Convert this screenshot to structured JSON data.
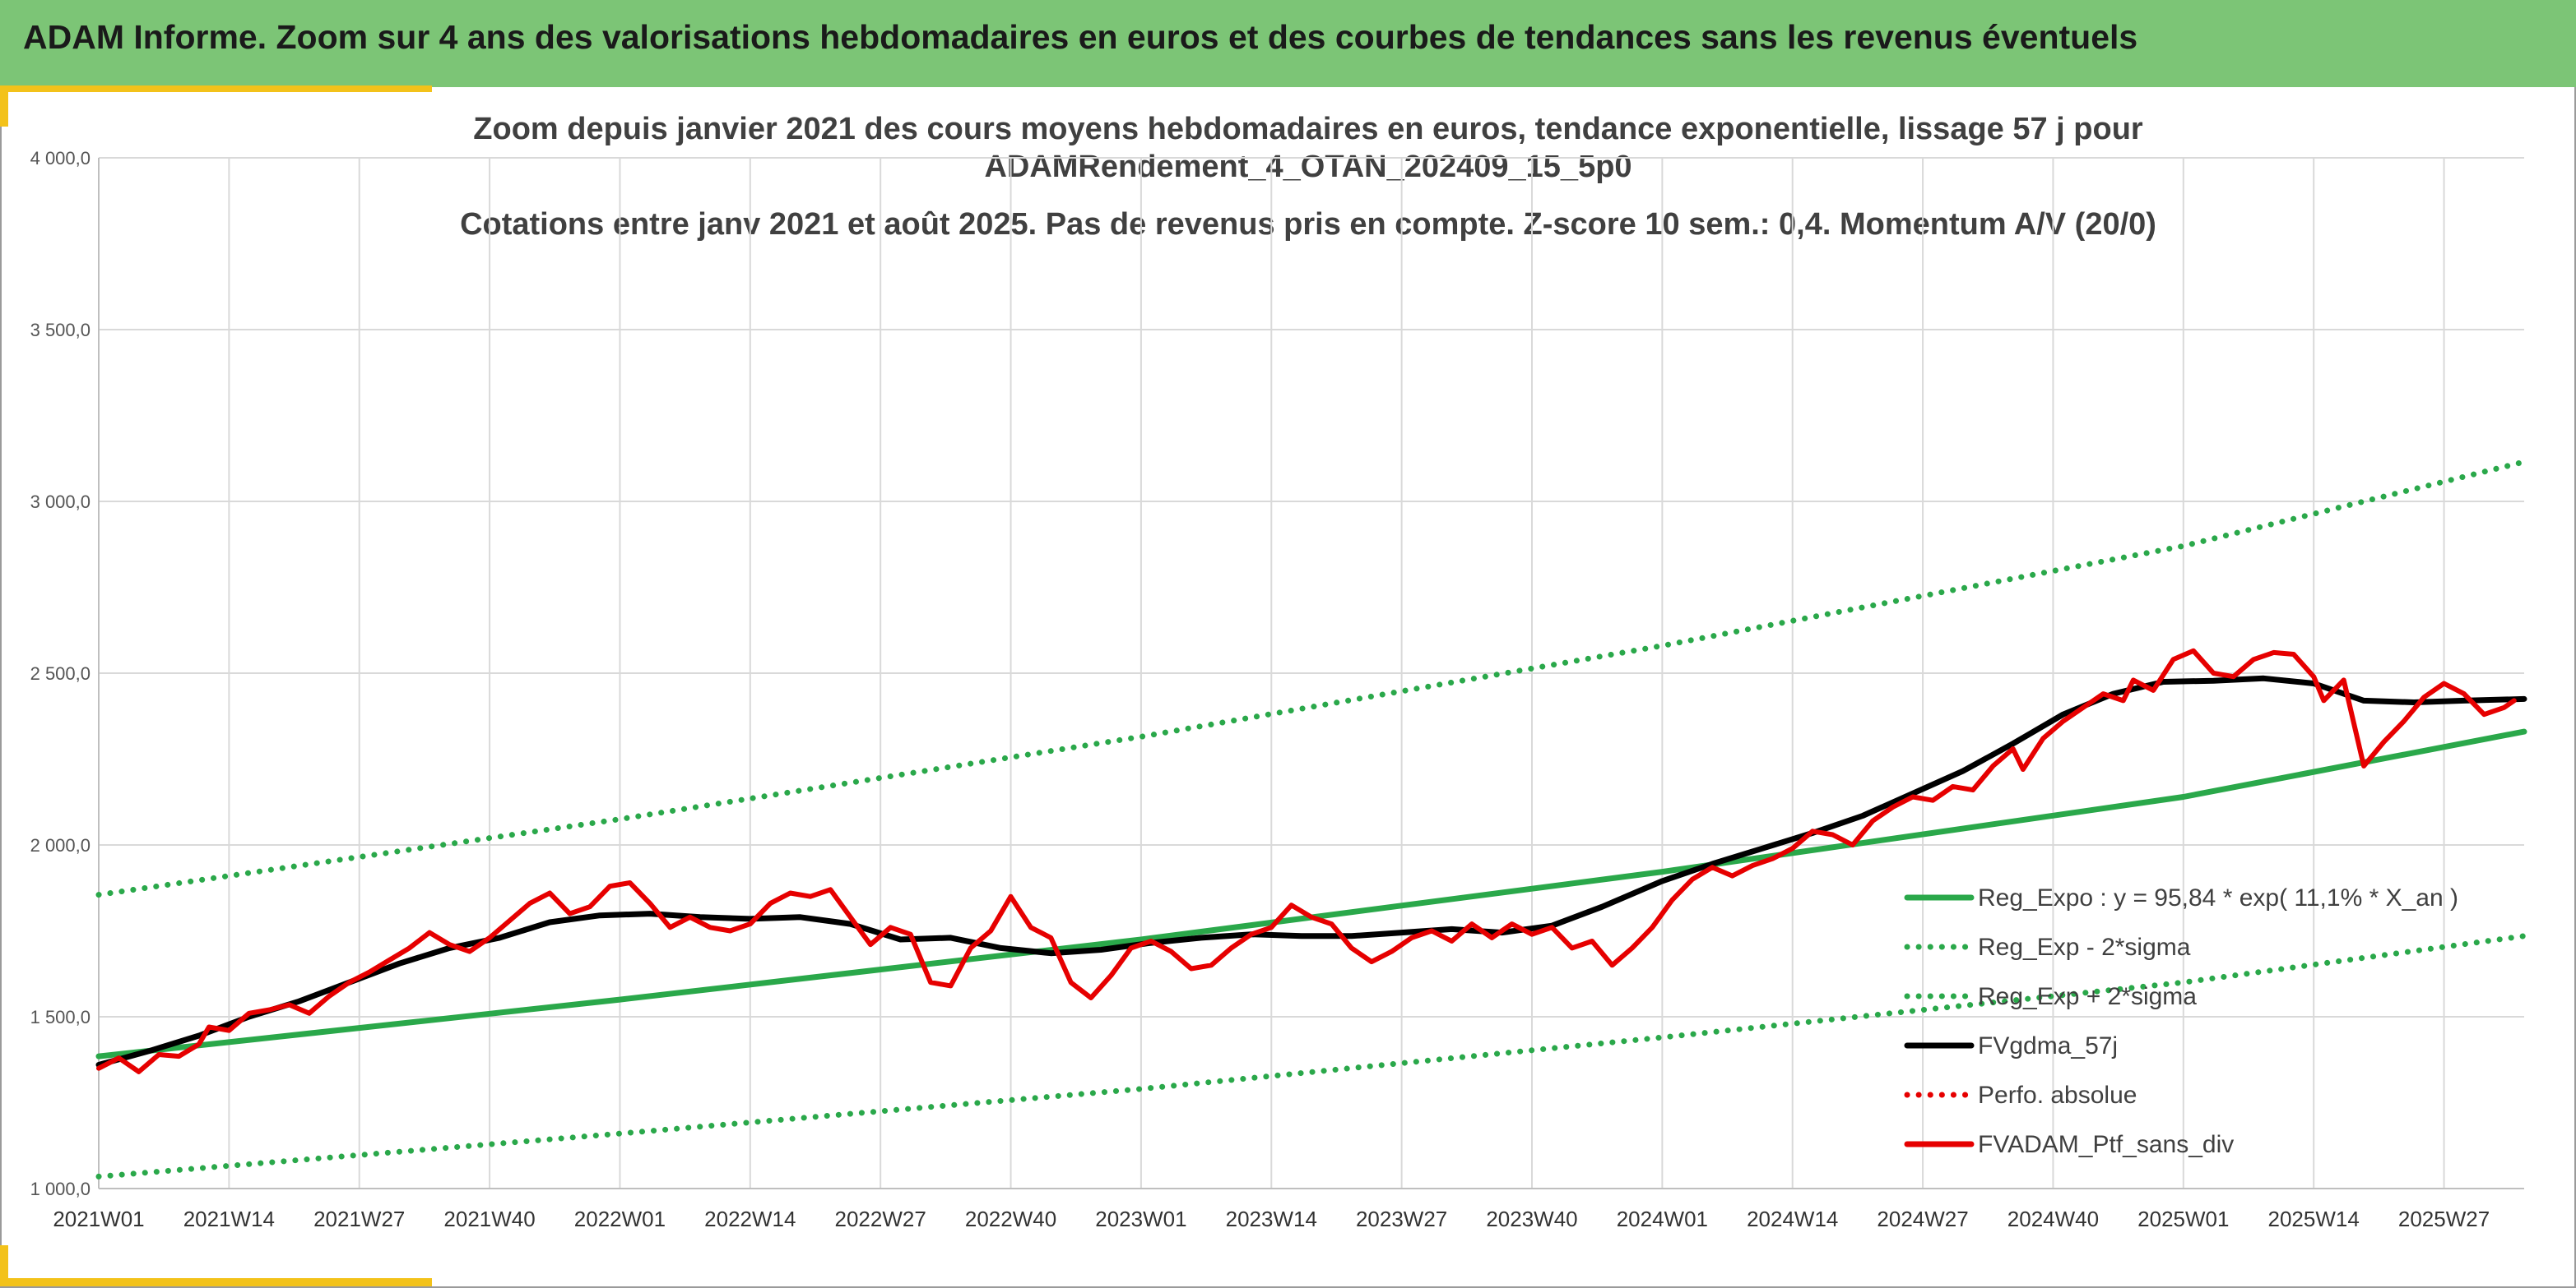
{
  "banner": {
    "title": "ADAM Informe. Zoom sur 4 ans des valorisations hebdomadaires en euros et des courbes de tendances sans les revenus éventuels",
    "background": "#7cc576"
  },
  "chart_data": {
    "type": "line",
    "title_lines": [
      "Zoom depuis janvier 2021 des cours moyens hebdomadaires en euros, tendance exponentielle, lissage 57 j pour",
      "ADAMRendement_4_OTAN_202409_15_5p0",
      "Cotations entre janv 2021 et août 2025. Pas de revenus pris en compte. Z-score 10 sem.: 0,4. Momentum A/V (20/0)"
    ],
    "ylim": [
      1000,
      4000
    ],
    "y_ticks": [
      {
        "value": 1000,
        "label": "1 000,0"
      },
      {
        "value": 1500,
        "label": "1 500,0"
      },
      {
        "value": 2000,
        "label": "2 000,0"
      },
      {
        "value": 2500,
        "label": "2 500,0"
      },
      {
        "value": 3000,
        "label": "3 000,0"
      },
      {
        "value": 3500,
        "label": "3 500,0"
      },
      {
        "value": 4000,
        "label": "4 000,0"
      }
    ],
    "x_tick_labels": [
      "2021W01",
      "2021W14",
      "2021W27",
      "2021W40",
      "2022W01",
      "2022W14",
      "2022W27",
      "2022W40",
      "2023W01",
      "2023W14",
      "2023W27",
      "2023W40",
      "2024W01",
      "2024W14",
      "2024W27",
      "2024W40",
      "2025W01",
      "2025W14",
      "2025W27"
    ],
    "x_range": [
      "2021W01",
      "2025W35"
    ],
    "grid": true,
    "legend_position": "bottom-right",
    "series": [
      {
        "name": "Reg_Expo : y = 95,84 * exp( 11,1% *  X_an )",
        "style": "solid",
        "color": "#2aa84a",
        "points": [
          [
            "2021W01",
            1385
          ],
          [
            "2022W01",
            1550
          ],
          [
            "2023W01",
            1725
          ],
          [
            "2024W01",
            1922
          ],
          [
            "2025W01",
            2140
          ],
          [
            "2025W35",
            2330
          ]
        ]
      },
      {
        "name": "Reg_Exp - 2*sigma",
        "style": "dotted",
        "color": "#2aa84a",
        "points": [
          [
            "2021W01",
            1035
          ],
          [
            "2022W01",
            1160
          ],
          [
            "2023W01",
            1290
          ],
          [
            "2024W01",
            1440
          ],
          [
            "2025W01",
            1600
          ],
          [
            "2025W35",
            1735
          ]
        ]
      },
      {
        "name": "Reg_Exp + 2*sigma",
        "style": "dotted",
        "color": "#2aa84a",
        "points": [
          [
            "2021W01",
            1855
          ],
          [
            "2022W01",
            2075
          ],
          [
            "2023W01",
            2315
          ],
          [
            "2024W01",
            2580
          ],
          [
            "2025W01",
            2870
          ],
          [
            "2025W35",
            3115
          ]
        ]
      },
      {
        "name": "FVgdma_57j",
        "style": "solid",
        "color": "#000000",
        "points": [
          [
            "2021W01",
            1360
          ],
          [
            "2021W06",
            1400
          ],
          [
            "2021W11",
            1445
          ],
          [
            "2021W16",
            1500
          ],
          [
            "2021W21",
            1545
          ],
          [
            "2021W26",
            1600
          ],
          [
            "2021W31",
            1655
          ],
          [
            "2021W36",
            1700
          ],
          [
            "2021W41",
            1730
          ],
          [
            "2021W46",
            1775
          ],
          [
            "2021W51",
            1795
          ],
          [
            "2022W04",
            1800
          ],
          [
            "2022W09",
            1790
          ],
          [
            "2022W14",
            1785
          ],
          [
            "2022W19",
            1790
          ],
          [
            "2022W24",
            1770
          ],
          [
            "2022W29",
            1725
          ],
          [
            "2022W34",
            1730
          ],
          [
            "2022W39",
            1700
          ],
          [
            "2022W44",
            1685
          ],
          [
            "2022W49",
            1695
          ],
          [
            "2023W02",
            1715
          ],
          [
            "2023W07",
            1730
          ],
          [
            "2023W12",
            1740
          ],
          [
            "2023W17",
            1735
          ],
          [
            "2023W22",
            1735
          ],
          [
            "2023W27",
            1745
          ],
          [
            "2023W32",
            1755
          ],
          [
            "2023W37",
            1745
          ],
          [
            "2023W42",
            1765
          ],
          [
            "2023W47",
            1820
          ],
          [
            "2024W01",
            1895
          ],
          [
            "2024W06",
            1945
          ],
          [
            "2024W11",
            1990
          ],
          [
            "2024W16",
            2035
          ],
          [
            "2024W21",
            2085
          ],
          [
            "2024W26",
            2150
          ],
          [
            "2024W31",
            2215
          ],
          [
            "2024W36",
            2295
          ],
          [
            "2024W41",
            2380
          ],
          [
            "2024W46",
            2440
          ],
          [
            "2024W51",
            2475
          ],
          [
            "2025W04",
            2478
          ],
          [
            "2025W09",
            2485
          ],
          [
            "2025W14",
            2470
          ],
          [
            "2025W19",
            2420
          ],
          [
            "2025W24",
            2415
          ],
          [
            "2025W29",
            2420
          ],
          [
            "2025W35",
            2425
          ]
        ]
      },
      {
        "name": "Perfo. absolue",
        "style": "dotted",
        "color": "#e60000",
        "points": []
      },
      {
        "name": "FVADAM_Ptf_sans_div",
        "style": "solid",
        "color": "#e60000",
        "points": [
          [
            "2021W01",
            1350
          ],
          [
            "2021W03",
            1380
          ],
          [
            "2021W05",
            1340
          ],
          [
            "2021W07",
            1390
          ],
          [
            "2021W09",
            1385
          ],
          [
            "2021W11",
            1420
          ],
          [
            "2021W12",
            1470
          ],
          [
            "2021W14",
            1460
          ],
          [
            "2021W16",
            1510
          ],
          [
            "2021W18",
            1520
          ],
          [
            "2021W20",
            1535
          ],
          [
            "2021W22",
            1510
          ],
          [
            "2021W24",
            1560
          ],
          [
            "2021W26",
            1600
          ],
          [
            "2021W28",
            1630
          ],
          [
            "2021W30",
            1665
          ],
          [
            "2021W32",
            1700
          ],
          [
            "2021W34",
            1745
          ],
          [
            "2021W36",
            1710
          ],
          [
            "2021W38",
            1690
          ],
          [
            "2021W40",
            1730
          ],
          [
            "2021W42",
            1780
          ],
          [
            "2021W44",
            1830
          ],
          [
            "2021W46",
            1860
          ],
          [
            "2021W48",
            1800
          ],
          [
            "2021W50",
            1820
          ],
          [
            "2021W52",
            1880
          ],
          [
            "2022W02",
            1890
          ],
          [
            "2022W04",
            1830
          ],
          [
            "2022W06",
            1760
          ],
          [
            "2022W08",
            1790
          ],
          [
            "2022W10",
            1760
          ],
          [
            "2022W12",
            1750
          ],
          [
            "2022W14",
            1770
          ],
          [
            "2022W16",
            1830
          ],
          [
            "2022W18",
            1860
          ],
          [
            "2022W20",
            1850
          ],
          [
            "2022W22",
            1870
          ],
          [
            "2022W24",
            1790
          ],
          [
            "2022W26",
            1710
          ],
          [
            "2022W28",
            1760
          ],
          [
            "2022W30",
            1740
          ],
          [
            "2022W32",
            1600
          ],
          [
            "2022W34",
            1590
          ],
          [
            "2022W36",
            1700
          ],
          [
            "2022W38",
            1750
          ],
          [
            "2022W40",
            1850
          ],
          [
            "2022W42",
            1760
          ],
          [
            "2022W44",
            1730
          ],
          [
            "2022W46",
            1600
          ],
          [
            "2022W48",
            1555
          ],
          [
            "2022W50",
            1620
          ],
          [
            "2022W52",
            1700
          ],
          [
            "2023W02",
            1720
          ],
          [
            "2023W04",
            1690
          ],
          [
            "2023W06",
            1640
          ],
          [
            "2023W08",
            1650
          ],
          [
            "2023W10",
            1700
          ],
          [
            "2023W12",
            1740
          ],
          [
            "2023W14",
            1760
          ],
          [
            "2023W16",
            1825
          ],
          [
            "2023W18",
            1790
          ],
          [
            "2023W20",
            1770
          ],
          [
            "2023W22",
            1700
          ],
          [
            "2023W24",
            1660
          ],
          [
            "2023W26",
            1690
          ],
          [
            "2023W28",
            1730
          ],
          [
            "2023W30",
            1750
          ],
          [
            "2023W32",
            1720
          ],
          [
            "2023W34",
            1770
          ],
          [
            "2023W36",
            1730
          ],
          [
            "2023W38",
            1770
          ],
          [
            "2023W40",
            1740
          ],
          [
            "2023W42",
            1760
          ],
          [
            "2023W44",
            1700
          ],
          [
            "2023W46",
            1720
          ],
          [
            "2023W48",
            1650
          ],
          [
            "2023W50",
            1700
          ],
          [
            "2023W52",
            1760
          ],
          [
            "2024W02",
            1840
          ],
          [
            "2024W04",
            1900
          ],
          [
            "2024W06",
            1935
          ],
          [
            "2024W08",
            1910
          ],
          [
            "2024W10",
            1940
          ],
          [
            "2024W12",
            1960
          ],
          [
            "2024W14",
            1990
          ],
          [
            "2024W16",
            2040
          ],
          [
            "2024W18",
            2030
          ],
          [
            "2024W20",
            2000
          ],
          [
            "2024W22",
            2070
          ],
          [
            "2024W24",
            2110
          ],
          [
            "2024W26",
            2140
          ],
          [
            "2024W28",
            2130
          ],
          [
            "2024W30",
            2170
          ],
          [
            "2024W32",
            2160
          ],
          [
            "2024W34",
            2230
          ],
          [
            "2024W36",
            2280
          ],
          [
            "2024W37",
            2220
          ],
          [
            "2024W39",
            2310
          ],
          [
            "2024W41",
            2360
          ],
          [
            "2024W43",
            2400
          ],
          [
            "2024W45",
            2440
          ],
          [
            "2024W47",
            2420
          ],
          [
            "2024W48",
            2480
          ],
          [
            "2024W50",
            2450
          ],
          [
            "2024W52",
            2540
          ],
          [
            "2025W02",
            2565
          ],
          [
            "2025W04",
            2500
          ],
          [
            "2025W06",
            2490
          ],
          [
            "2025W08",
            2540
          ],
          [
            "2025W10",
            2560
          ],
          [
            "2025W12",
            2555
          ],
          [
            "2025W14",
            2490
          ],
          [
            "2025W15",
            2420
          ],
          [
            "2025W17",
            2480
          ],
          [
            "2025W19",
            2230
          ],
          [
            "2025W21",
            2300
          ],
          [
            "2025W23",
            2360
          ],
          [
            "2025W25",
            2430
          ],
          [
            "2025W27",
            2470
          ],
          [
            "2025W29",
            2440
          ],
          [
            "2025W31",
            2380
          ],
          [
            "2025W33",
            2400
          ],
          [
            "2025W34",
            2420
          ]
        ]
      }
    ]
  }
}
